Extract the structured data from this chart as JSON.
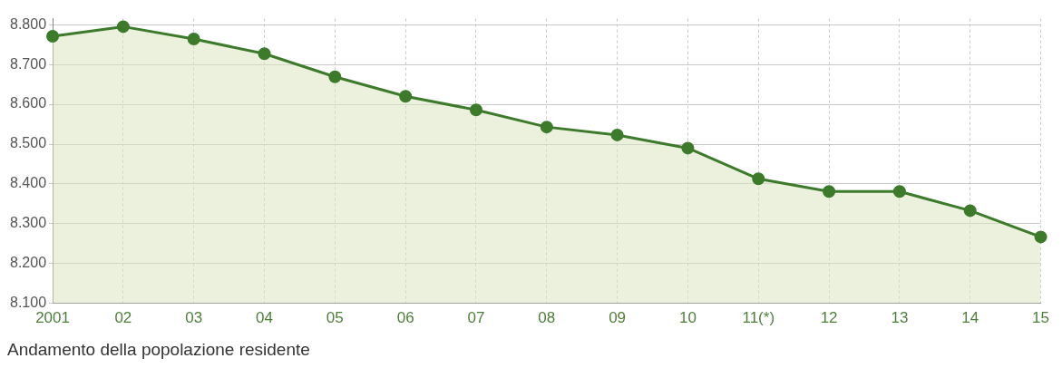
{
  "chart_data": {
    "type": "area",
    "title": "Andamento della popolazione residente",
    "categories": [
      "2001",
      "02",
      "03",
      "04",
      "05",
      "06",
      "07",
      "08",
      "09",
      "10",
      "11(*)",
      "12",
      "13",
      "14",
      "15"
    ],
    "series": [
      {
        "color": "#3d7a2c",
        "values": [
          8771,
          8795,
          8764,
          8727,
          8669,
          8620,
          8586,
          8543,
          8523,
          8490,
          8413,
          8381,
          8381,
          8333,
          8267
        ]
      }
    ],
    "ylim": [
      8100,
      8815
    ],
    "yticks": [
      {
        "value": 8100,
        "label": "8.100"
      },
      {
        "value": 8200,
        "label": "8.200"
      },
      {
        "value": 8300,
        "label": "8.300"
      },
      {
        "value": 8400,
        "label": "8.400"
      },
      {
        "value": 8500,
        "label": "8.500"
      },
      {
        "value": 8600,
        "label": "8.600"
      },
      {
        "value": 8700,
        "label": "8.700"
      },
      {
        "value": 8800,
        "label": "8.800"
      }
    ],
    "grid": true,
    "legend": false,
    "marker": "circle",
    "line_style": "solid"
  }
}
